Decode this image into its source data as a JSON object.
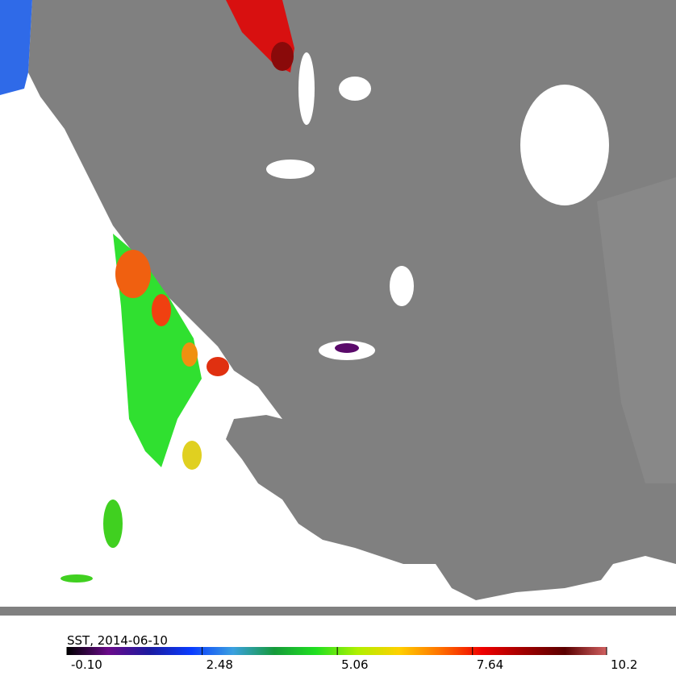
{
  "title": "SST, 2014-06-10",
  "colorbar": {
    "range": [
      -0.1,
      10.2
    ],
    "ticks": [
      {
        "value": -0.1,
        "label": "-0.10"
      },
      2.48,
      5.06,
      7.64,
      10.2
    ],
    "colors": [
      "#000000",
      "#6a0a8a",
      "#1a1aa0",
      "#0a3cff",
      "#3aa0e0",
      "#159a3a",
      "#20e020",
      "#b0f000",
      "#ffd000",
      "#ff7000",
      "#f00000",
      "#a00000",
      "#5a0000",
      "#d06060"
    ]
  }
}
